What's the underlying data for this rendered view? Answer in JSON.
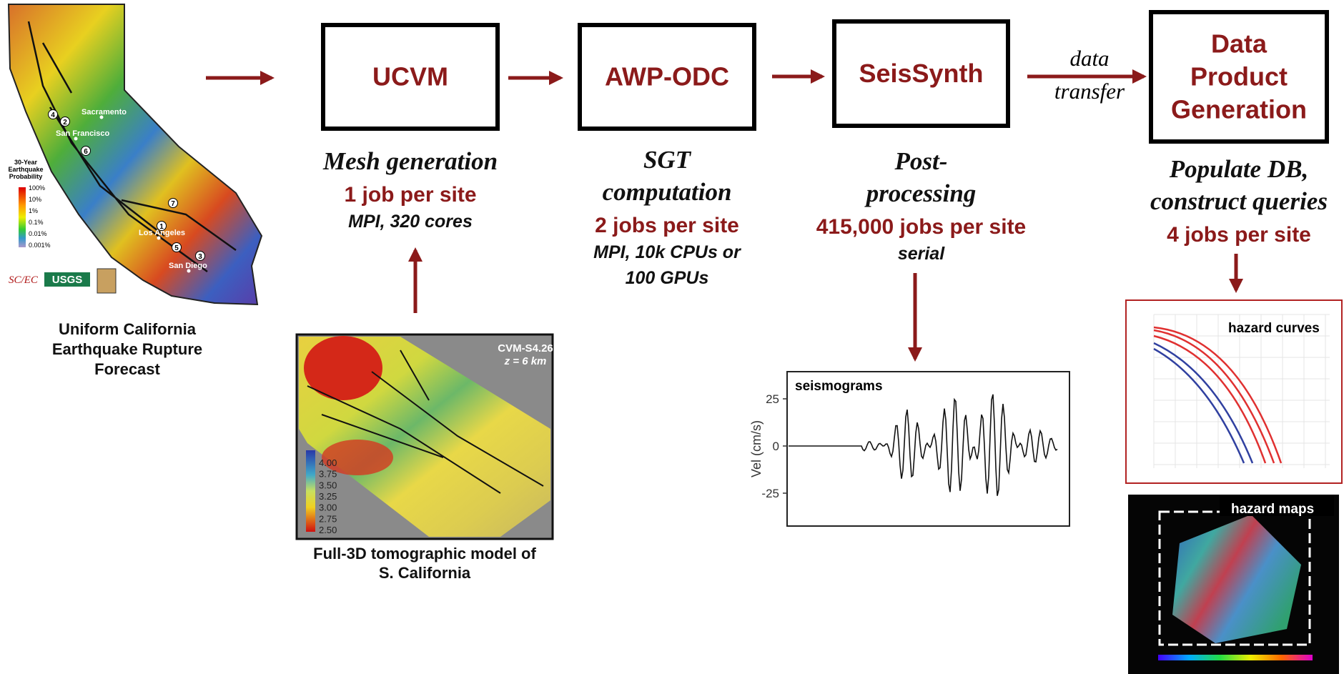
{
  "forecast": {
    "caption_lines": [
      "Uniform California",
      "Earthquake Rupture",
      "Forecast"
    ],
    "cities": [
      "Sacramento",
      "San Francisco",
      "Los Angeles",
      "San Diego"
    ],
    "fault_markers": [
      "4",
      "2",
      "6",
      "7",
      "1",
      "5",
      "3"
    ],
    "legend_title_lines": [
      "30-Year",
      "Earthquake",
      "Probability"
    ],
    "legend_ticks": [
      "100%",
      "10%",
      "1%",
      "0.1%",
      "0.01%",
      "0.001%"
    ],
    "logos": [
      "SC/EC",
      "USGS"
    ]
  },
  "steps": [
    {
      "label_lines": [
        "UCVM"
      ],
      "description_lines": [
        "Mesh generation"
      ],
      "jobs": "1 job per site",
      "detail_lines": [
        "MPI, 320 cores"
      ]
    },
    {
      "label_lines": [
        "AWP-ODC"
      ],
      "description_lines": [
        "SGT",
        "computation"
      ],
      "jobs": "2 jobs per site",
      "detail_lines": [
        "MPI, 10k CPUs or",
        "100 GPUs"
      ]
    },
    {
      "label_lines": [
        "SeisSynth"
      ],
      "description_lines": [
        "Post-",
        "processing"
      ],
      "jobs": "415,000 jobs per site",
      "detail_lines": [
        "serial"
      ]
    },
    {
      "label_lines": [
        "Data",
        "Product",
        "Generation"
      ],
      "description_lines": [
        "Populate DB,",
        "construct queries"
      ],
      "jobs": "4 jobs per site",
      "detail_lines": []
    }
  ],
  "transfer_lines": [
    "data",
    "transfer"
  ],
  "tomography": {
    "model": "CVM-S4.26",
    "depth": "z = 6 km",
    "colorbar_ticks": [
      "4.00",
      "3.75",
      "3.50",
      "3.25",
      "3.00",
      "2.75",
      "2.50"
    ],
    "caption_lines": [
      "Full-3D tomographic model of",
      "S. California"
    ]
  },
  "seismogram": {
    "title": "seismograms",
    "y_label": "Vel (cm/s)",
    "yticks": [
      25,
      0,
      -25
    ]
  },
  "hazard_curves": {
    "title": "hazard curves"
  },
  "hazard_maps": {
    "title": "hazard maps"
  }
}
